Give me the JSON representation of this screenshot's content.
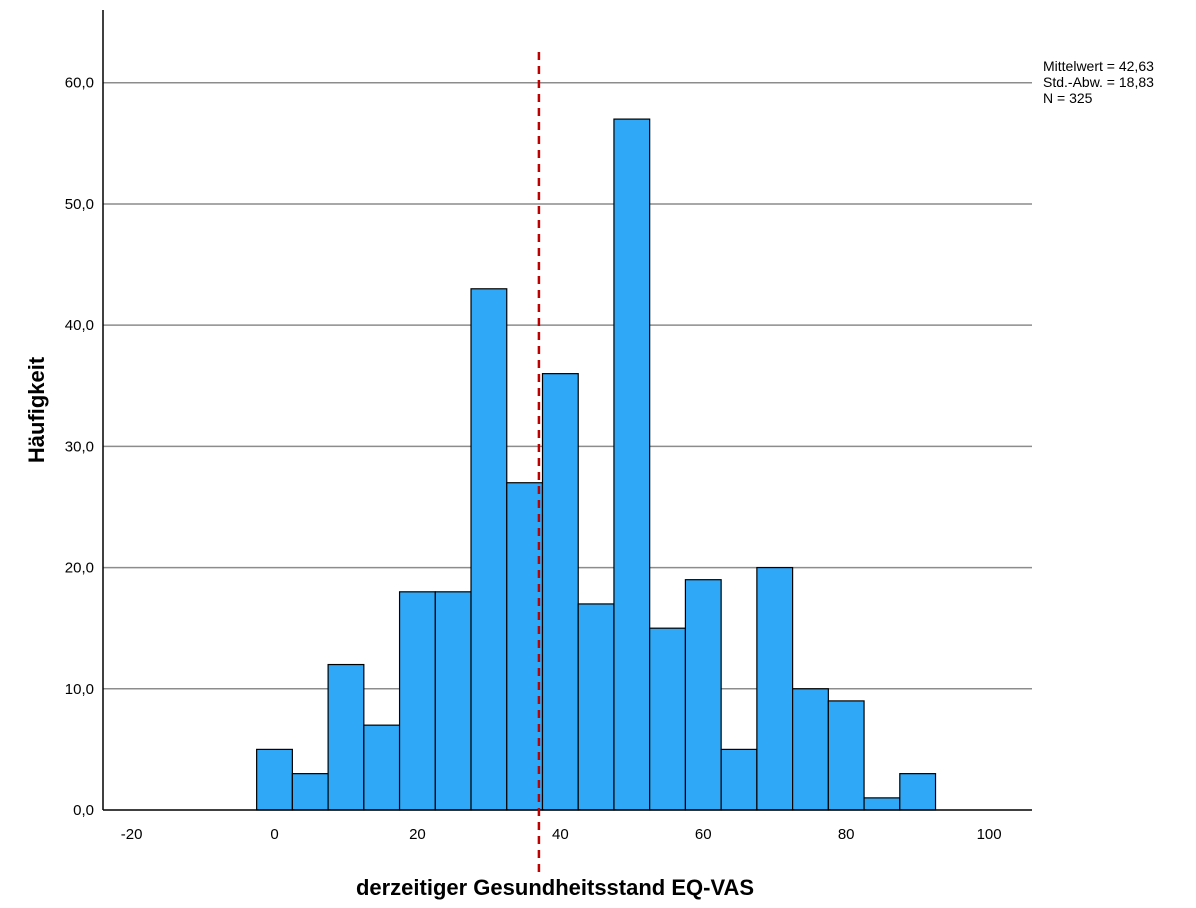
{
  "chart_data": {
    "type": "bar",
    "subtype": "histogram",
    "xlabel": "derzeitiger Gesundheitsstand EQ-VAS",
    "ylabel": "Häufigkeit",
    "x_ticks": [
      -20,
      0,
      20,
      40,
      60,
      80,
      100
    ],
    "y_ticks": [
      "0,0",
      "10,0",
      "20,0",
      "30,0",
      "40,0",
      "50,0",
      "60,0"
    ],
    "xlim": [
      -24,
      106
    ],
    "ylim": [
      0,
      66
    ],
    "grid": "horizontal",
    "bin_width": 5,
    "bins": [
      {
        "x0": -2.5,
        "x1": 2.5,
        "count": 5
      },
      {
        "x0": 2.5,
        "x1": 7.5,
        "count": 3
      },
      {
        "x0": 7.5,
        "x1": 12.5,
        "count": 12
      },
      {
        "x0": 12.5,
        "x1": 17.5,
        "count": 7
      },
      {
        "x0": 17.5,
        "x1": 22.5,
        "count": 18
      },
      {
        "x0": 22.5,
        "x1": 27.5,
        "count": 18
      },
      {
        "x0": 27.5,
        "x1": 32.5,
        "count": 43
      },
      {
        "x0": 32.5,
        "x1": 37.5,
        "count": 27
      },
      {
        "x0": 37.5,
        "x1": 42.5,
        "count": 36
      },
      {
        "x0": 42.5,
        "x1": 47.5,
        "count": 17
      },
      {
        "x0": 47.5,
        "x1": 52.5,
        "count": 57
      },
      {
        "x0": 52.5,
        "x1": 57.5,
        "count": 15
      },
      {
        "x0": 57.5,
        "x1": 62.5,
        "count": 19
      },
      {
        "x0": 62.5,
        "x1": 67.5,
        "count": 5
      },
      {
        "x0": 67.5,
        "x1": 72.5,
        "count": 20
      },
      {
        "x0": 72.5,
        "x1": 77.5,
        "count": 10
      },
      {
        "x0": 77.5,
        "x1": 82.5,
        "count": 9
      },
      {
        "x0": 82.5,
        "x1": 87.5,
        "count": 1
      },
      {
        "x0": 87.5,
        "x1": 92.5,
        "count": 3
      }
    ],
    "reference_line": {
      "x": 37,
      "style": "dashed",
      "color": "#c00000"
    },
    "stats": [
      "Mittelwert = 42,63",
      "Std.-Abw. = 18,83",
      "N = 325"
    ],
    "colors": {
      "bar_fill": "#30a8f8",
      "bar_stroke": "#000000",
      "grid": "#8c8c8c",
      "axis": "#000000"
    }
  }
}
